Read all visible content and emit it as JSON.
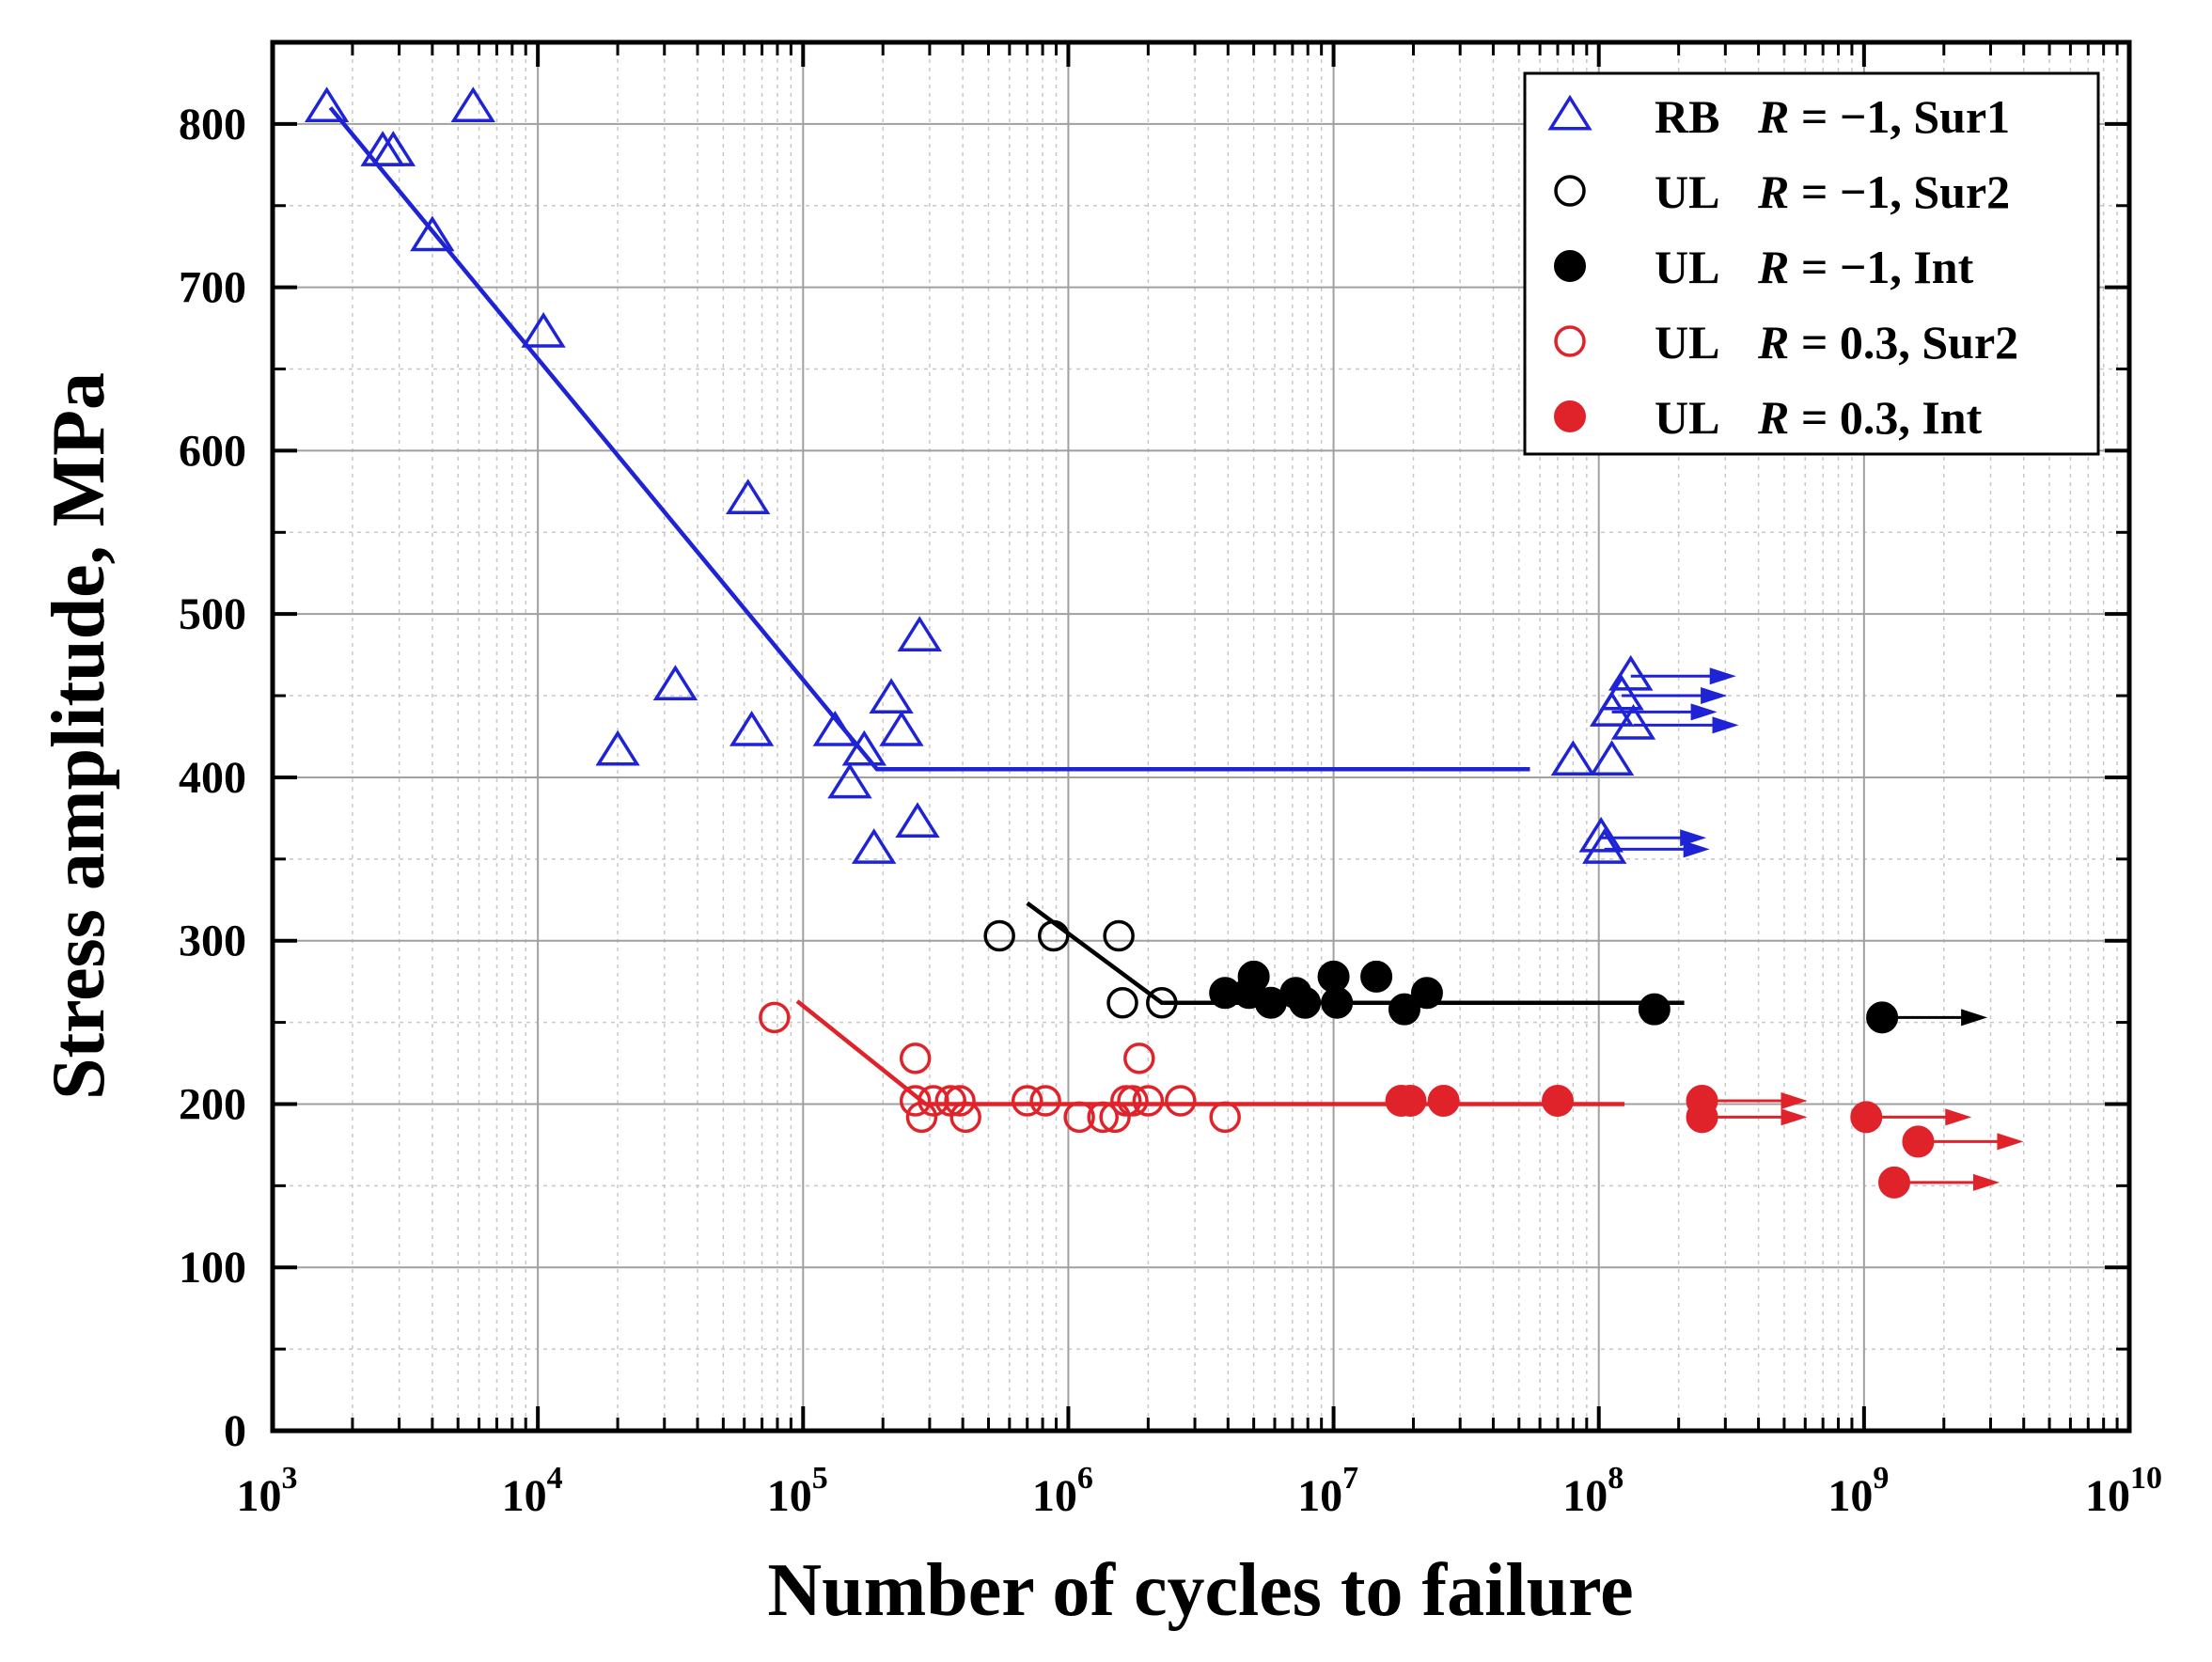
{
  "chart_data": {
    "type": "scatter",
    "title": "",
    "xlabel": "Number of cycles to failure",
    "ylabel": "Stress amplitude, MPa",
    "xscale": "log",
    "xlim_exp": [
      3,
      10
    ],
    "ylim": [
      0,
      850
    ],
    "yticks": [
      "0",
      "100",
      "200",
      "300",
      "400",
      "500",
      "600",
      "700",
      "800"
    ],
    "xtick_base": "10",
    "xtick_exponents": [
      "3",
      "4",
      "5",
      "6",
      "7",
      "8",
      "9",
      "10"
    ],
    "grid": true,
    "legend_position": "top-right",
    "colors": {
      "blue": "#1f23d6",
      "black": "#000000",
      "red": "#e0232a"
    },
    "series": [
      {
        "name": "RB R = −1, Sur1",
        "legend": {
          "prefix": "RB",
          "r": "R",
          "value": " = −1, Sur1"
        },
        "marker": "triangle-open",
        "color": "#1f23d6",
        "points": [
          [
            1600,
            810
          ],
          [
            2600,
            783
          ],
          [
            2850,
            783
          ],
          [
            4000,
            731
          ],
          [
            5700,
            810
          ],
          [
            10500,
            672
          ],
          [
            20000,
            416
          ],
          [
            33000,
            456
          ],
          [
            62000,
            570
          ],
          [
            64000,
            428
          ],
          [
            132000,
            428
          ],
          [
            150000,
            396
          ],
          [
            170000,
            416
          ],
          [
            185000,
            356
          ],
          [
            215000,
            448
          ],
          [
            235000,
            428
          ],
          [
            270000,
            372
          ],
          [
            275000,
            486
          ],
          [
            80000000,
            410
          ],
          [
            112000000,
            410
          ]
        ],
        "runouts": [
          [
            102000000,
            363
          ],
          [
            105000000,
            356
          ],
          [
            112000000,
            440
          ],
          [
            122000000,
            450
          ],
          [
            132000000,
            462
          ],
          [
            135000000,
            432
          ]
        ]
      },
      {
        "name": "UL R = −1, Sur2",
        "legend": {
          "prefix": "UL",
          "r": "R",
          "value": " = −1, Sur2"
        },
        "marker": "circle-open",
        "color": "#000000",
        "points": [
          [
            550000,
            303
          ],
          [
            880000,
            303
          ],
          [
            1550000,
            303
          ],
          [
            1600000,
            262
          ],
          [
            2250000,
            262
          ]
        ],
        "runouts": []
      },
      {
        "name": "UL R = −1, Int",
        "legend": {
          "prefix": "UL",
          "r": "R",
          "value": " = −1, Int"
        },
        "marker": "circle-filled",
        "color": "#000000",
        "points": [
          [
            3900000,
            268
          ],
          [
            4800000,
            268
          ],
          [
            5000000,
            278
          ],
          [
            5800000,
            262
          ],
          [
            7200000,
            268
          ],
          [
            7800000,
            262
          ],
          [
            10000000,
            278
          ],
          [
            10300000,
            262
          ],
          [
            14500000,
            278
          ],
          [
            18500000,
            258
          ],
          [
            22500000,
            268
          ],
          [
            162000000,
            258
          ]
        ],
        "runouts": [
          [
            1170000000,
            253
          ]
        ]
      },
      {
        "name": "UL R = 0.3, Sur2",
        "legend": {
          "prefix": "UL",
          "r": "R",
          "value": " = 0.3, Sur2"
        },
        "marker": "circle-open",
        "color": "#e0232a",
        "points": [
          [
            78000,
            253
          ],
          [
            265000,
            228
          ],
          [
            265000,
            202
          ],
          [
            280000,
            192
          ],
          [
            310000,
            202
          ],
          [
            360000,
            202
          ],
          [
            390000,
            202
          ],
          [
            410000,
            192
          ],
          [
            700000,
            202
          ],
          [
            820000,
            202
          ],
          [
            1100000,
            192
          ],
          [
            1350000,
            192
          ],
          [
            1500000,
            192
          ],
          [
            1650000,
            202
          ],
          [
            1750000,
            202
          ],
          [
            1850000,
            228
          ],
          [
            2000000,
            202
          ],
          [
            2650000,
            202
          ],
          [
            3900000,
            192
          ]
        ],
        "runouts": []
      },
      {
        "name": "UL R = 0.3, Int",
        "legend": {
          "prefix": "UL",
          "r": "R",
          "value": " = 0.3, Int"
        },
        "marker": "circle-filled",
        "color": "#e0232a",
        "points": [
          [
            18000000,
            202
          ],
          [
            19500000,
            202
          ],
          [
            26000000,
            202
          ],
          [
            70000000,
            202
          ]
        ],
        "runouts": [
          [
            245000000,
            202
          ],
          [
            245000000,
            192
          ],
          [
            1020000000,
            192
          ],
          [
            1300000000,
            152
          ],
          [
            1600000000,
            177
          ]
        ]
      }
    ],
    "fit_lines": [
      {
        "color": "#1f23d6",
        "points": [
          [
            1650,
            810
          ],
          [
            190000,
            405
          ],
          [
            55000000,
            405
          ]
        ]
      },
      {
        "color": "#000000",
        "points": [
          [
            700000,
            323
          ],
          [
            2250000,
            262
          ],
          [
            210000000,
            262
          ]
        ]
      },
      {
        "color": "#e0232a",
        "points": [
          [
            95000,
            263
          ],
          [
            290000,
            200
          ],
          [
            125000000,
            200
          ]
        ]
      }
    ]
  }
}
